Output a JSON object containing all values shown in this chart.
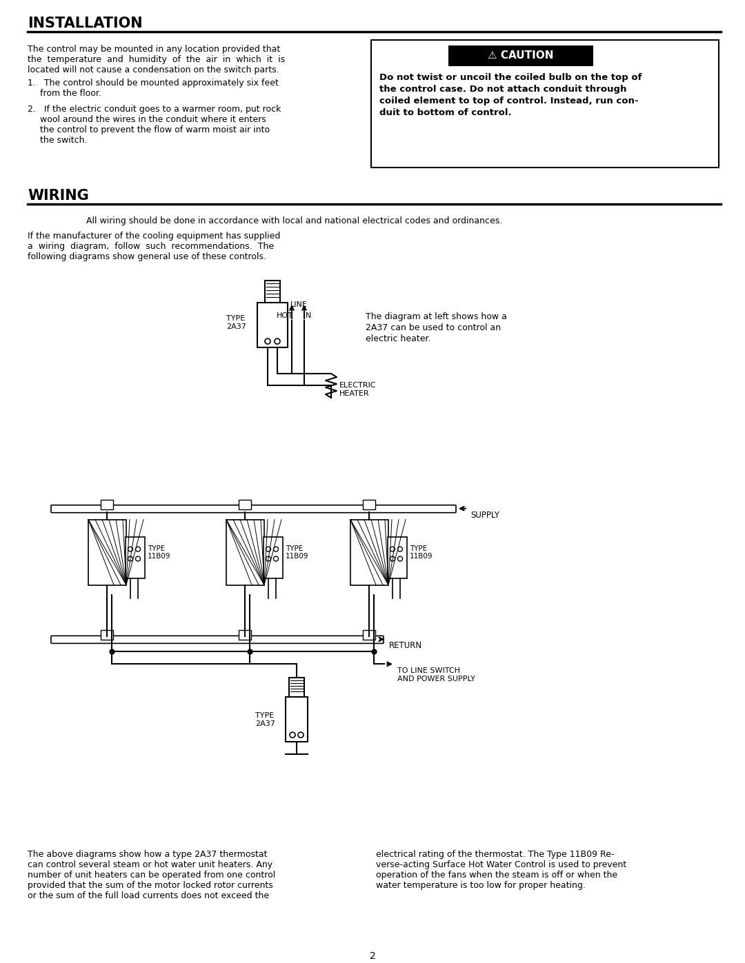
{
  "page_bg": "#ffffff",
  "title_installation": "INSTALLATION",
  "title_wiring": "WIRING",
  "caution_title": "CAUTION",
  "caution_lines": [
    "Do not twist or uncoil the coiled bulb on the top of",
    "the control case. Do not attach conduit through",
    "coiled element to top of control. Instead, run con-",
    "duit to bottom of control."
  ],
  "wiring_para1": "All wiring should be done in accordance with local and national electrical codes and ordinances.",
  "diagram1_caption": [
    "The diagram at left shows how a",
    "2A37 can be used to control an",
    "electric heater."
  ],
  "bottom_para_left": [
    "The above diagrams show how a type 2A37 thermostat",
    "can control several steam or hot water unit heaters. Any",
    "number of unit heaters can be operated from one control",
    "provided that the sum of the motor locked rotor currents",
    "or the sum of the full load currents does not exceed the"
  ],
  "bottom_para_right": [
    "electrical rating of the thermostat. The Type 11B09 Re-",
    "verse-acting Surface Hot Water Control is used to prevent",
    "operation of the fans when the steam is off or when the",
    "water temperature is too low for proper heating."
  ],
  "page_number": "2"
}
